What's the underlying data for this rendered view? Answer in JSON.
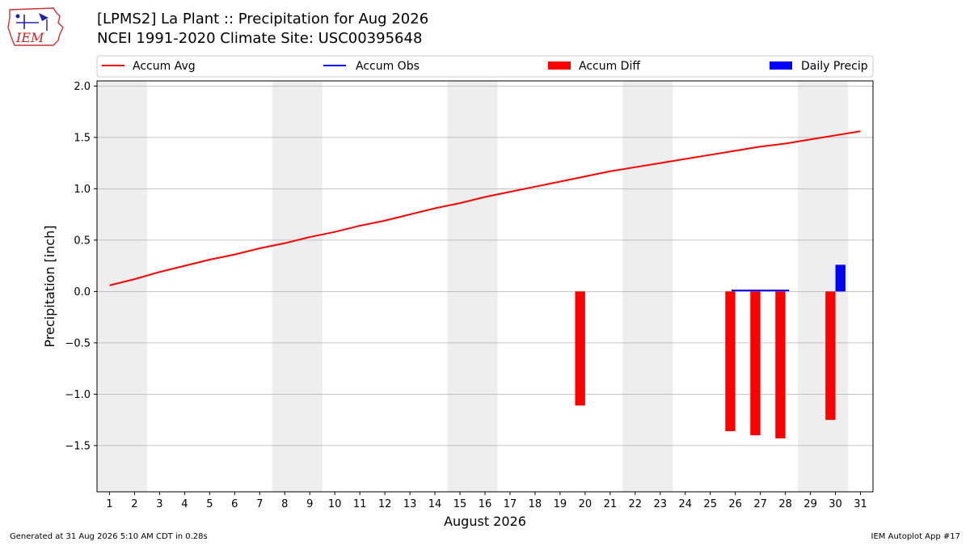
{
  "logo": {
    "text": "IEM",
    "icon": "iem-iowa-logo-icon"
  },
  "header": {
    "title_line1": "[LPMS2] La Plant :: Precipitation for Aug 2026",
    "title_line2": "NCEI 1991-2020 Climate Site: USC00395648"
  },
  "footer": {
    "left": "Generated at 31 Aug 2026 5:10 AM CDT in 0.28s",
    "right": "IEM Autoplot App #17"
  },
  "colors": {
    "accum_avg": "#ff0000",
    "accum_obs": "#0000ff",
    "accum_diff": "#ff0000",
    "daily_precip": "#0000ff",
    "weekend_band": "#eeeeee",
    "grid": "#b0b0b0"
  },
  "chart_data": {
    "type": "bar",
    "xlabel": "August 2026",
    "ylabel": "Precipitation [inch]",
    "x": [
      1,
      2,
      3,
      4,
      5,
      6,
      7,
      8,
      9,
      10,
      11,
      12,
      13,
      14,
      15,
      16,
      17,
      18,
      19,
      20,
      21,
      22,
      23,
      24,
      25,
      26,
      27,
      28,
      29,
      30,
      31
    ],
    "xlim": [
      0.5,
      31.5
    ],
    "ylim": [
      -1.95,
      2.05
    ],
    "yticks": [
      -1.5,
      -1.0,
      -0.5,
      0.0,
      0.5,
      1.0,
      1.5,
      2.0
    ],
    "ytick_labels": [
      "−1.5",
      "−1.0",
      "−0.5",
      "0.0",
      "0.5",
      "1.0",
      "1.5",
      "2.0"
    ],
    "grid": true,
    "legend_position": "top",
    "weekend_bands": [
      [
        1,
        2
      ],
      [
        8,
        9
      ],
      [
        15,
        16
      ],
      [
        22,
        23
      ],
      [
        29,
        30
      ]
    ],
    "legend": [
      {
        "name": "Accum Avg",
        "kind": "line",
        "color": "#ff0000"
      },
      {
        "name": "Accum Obs",
        "kind": "line",
        "color": "#0000ff"
      },
      {
        "name": "Accum Diff",
        "kind": "bar",
        "color": "#ff0000"
      },
      {
        "name": "Daily Precip",
        "kind": "bar",
        "color": "#0000ff"
      }
    ],
    "series": [
      {
        "name": "Accum Avg",
        "type": "line",
        "x": [
          1,
          2,
          3,
          4,
          5,
          6,
          7,
          8,
          9,
          10,
          11,
          12,
          13,
          14,
          15,
          16,
          17,
          18,
          19,
          20,
          21,
          22,
          23,
          24,
          25,
          26,
          27,
          28,
          29,
          30,
          31
        ],
        "values": [
          0.06,
          0.12,
          0.19,
          0.25,
          0.31,
          0.36,
          0.42,
          0.47,
          0.53,
          0.58,
          0.64,
          0.69,
          0.75,
          0.81,
          0.86,
          0.92,
          0.97,
          1.02,
          1.07,
          1.12,
          1.17,
          1.21,
          1.25,
          1.29,
          1.33,
          1.37,
          1.41,
          1.44,
          1.48,
          1.52,
          1.56
        ]
      },
      {
        "name": "Accum Obs",
        "type": "line",
        "x": [
          26,
          27,
          28
        ],
        "values": [
          0.01,
          0.01,
          0.01
        ]
      },
      {
        "name": "Accum Diff",
        "type": "bar",
        "x": [
          20,
          26,
          27,
          28,
          30
        ],
        "values": [
          -1.11,
          -1.36,
          -1.4,
          -1.43,
          -1.25
        ]
      },
      {
        "name": "Daily Precip",
        "type": "bar",
        "x": [
          30
        ],
        "values": [
          0.26
        ]
      }
    ]
  }
}
